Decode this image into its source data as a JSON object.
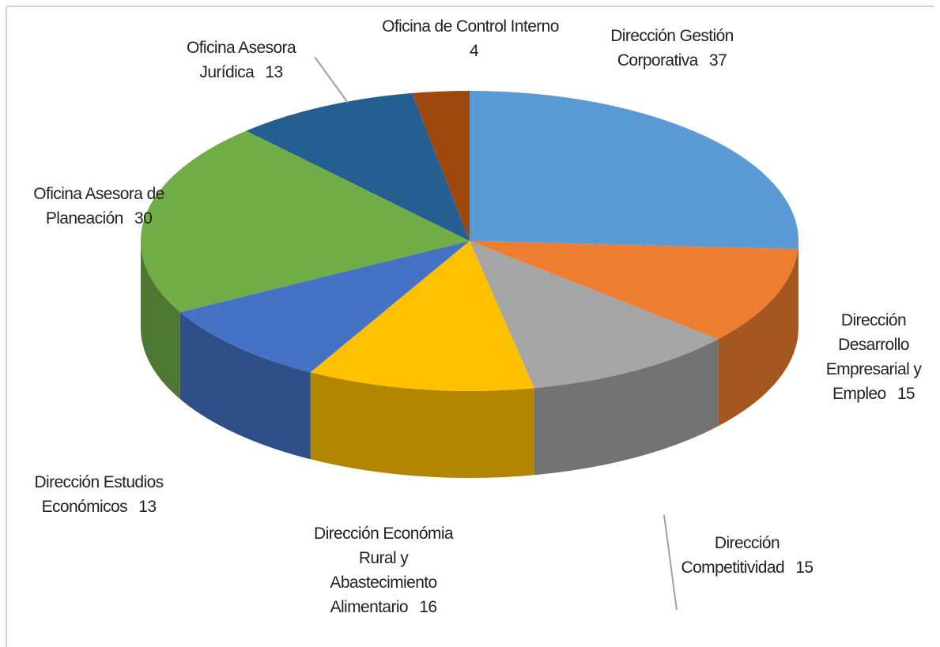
{
  "chart_data": {
    "type": "pie",
    "categories": [
      "Dirección Gestión Corporativa",
      "Dirección Desarrollo Empresarial y Empleo",
      "Dirección Competitividad",
      "Dirección Económia Rural y Abastecimiento Alimentario",
      "Dirección Estudios Económicos",
      "Oficina Asesora de Planeación",
      "Oficina Asesora Jurídica",
      "Oficina de Control Interno"
    ],
    "values": [
      37,
      15,
      15,
      16,
      13,
      30,
      13,
      4
    ],
    "colors": [
      "#5b9bd5",
      "#ed7d31",
      "#a5a5a5",
      "#ffc000",
      "#4472c4",
      "#70ad47",
      "#255e91",
      "#9e480e"
    ]
  }
}
